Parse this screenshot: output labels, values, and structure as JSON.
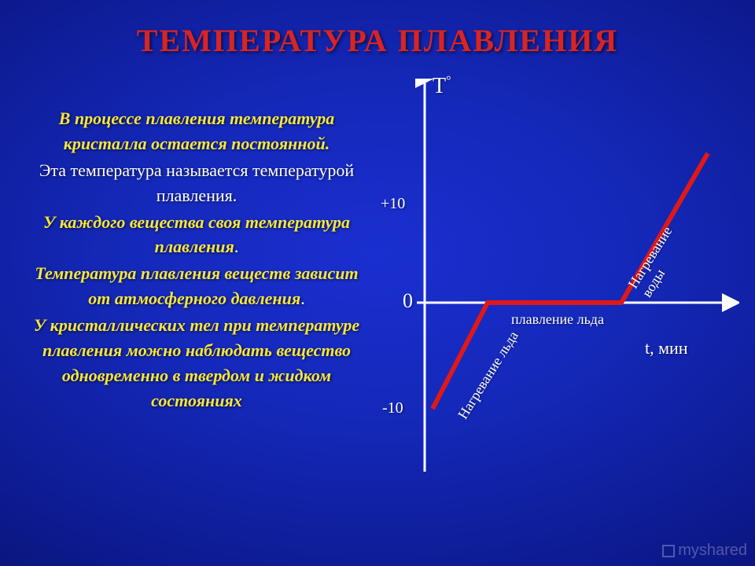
{
  "title": "ТЕМПЕРАТУРА   ПЛАВЛЕНИЯ",
  "text": {
    "l1": "В процессе плавления температура кристалла остается постоянной.",
    "l2": "Эта температура называется температурой плавления.",
    "l3": "У каждого вещества своя температура плавления",
    "l3b": ".",
    "l4": "Температура плавления  веществ зависит от атмосферного давления",
    "l4b": ".",
    "l5": "У  кристаллических  тел  при температуре плавления  можно наблюдать  вещество одновременно в твердом и жидком состояниях"
  },
  "chart": {
    "y_axis_label": "T",
    "y_axis_unit": "°",
    "x_axis_label": "t, мин",
    "origin_label": "0",
    "y_ticks": [
      {
        "label": "+10",
        "value": 10
      },
      {
        "label": "-10",
        "value": -10
      }
    ],
    "segments": [
      {
        "label": "Нагревание льда"
      },
      {
        "label": "плавление льда"
      },
      {
        "label": "Нагревание воды"
      }
    ],
    "line_color": "#e01818",
    "line_width": 6,
    "axis_color": "#ffffff",
    "axis_width": 3,
    "points": [
      {
        "x": 50,
        "y": 420
      },
      {
        "x": 120,
        "y": 285
      },
      {
        "x": 290,
        "y": 285
      },
      {
        "x": 400,
        "y": 95
      }
    ],
    "y_axis_x": 40,
    "y_axis_top": 0,
    "y_axis_bottom": 500,
    "x_axis_y": 285,
    "x_axis_left": 30,
    "x_axis_right": 430,
    "tick_plus10_y": 160,
    "tick_minus10_y": 420
  },
  "watermark": "myshared",
  "colors": {
    "title": "#d82424",
    "yellow": "#f5e642",
    "white": "#ffffff"
  }
}
